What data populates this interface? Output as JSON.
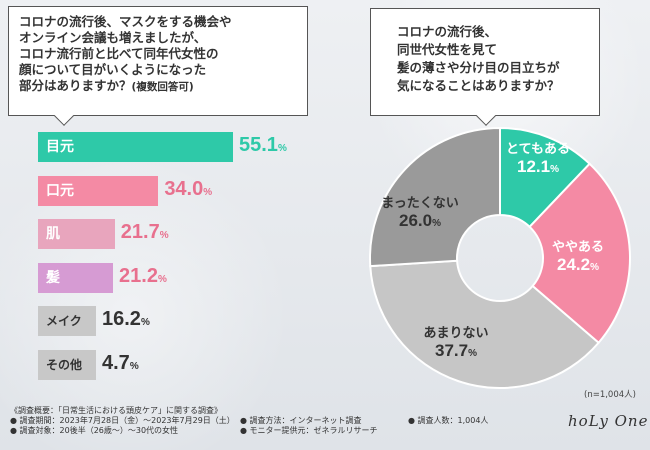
{
  "question_left": {
    "lines": [
      "コロナの流行後、マスクをする機会や",
      "オンライン会議も増えましたが、",
      "コロナ流行前と比べて同年代女性の",
      "顔について目がいくようになった"
    ],
    "last_line": "部分はありますか？",
    "note": "(複数回答可)"
  },
  "question_right": {
    "lines": [
      "コロナの流行後、",
      "同世代女性を見て",
      "髪の薄さや分け目の目立ちが",
      "気になることはありますか？"
    ]
  },
  "chart_data": [
    {
      "type": "bar",
      "orientation": "horizontal",
      "title": "コロナの流行後、マスクをする機会やオンライン会議も増えましたが、コロナ流行前と比べて同年代女性の顔について目がいくようになった部分はありますか？(複数回答可)",
      "categories": [
        "目元",
        "口元",
        "肌",
        "髪",
        "メイク",
        "その他"
      ],
      "values": [
        55.1,
        34.0,
        21.7,
        21.2,
        16.2,
        4.7
      ],
      "value_labels": [
        "55.1",
        "34.0",
        "21.7",
        "21.2",
        "16.2",
        "4.7"
      ],
      "unit": "%",
      "colors": [
        "#2ec9a8",
        "#f48aa4",
        "#e8a5bd",
        "#d69bd3",
        "#c8c8c8",
        "#c8c8c8"
      ],
      "label_colors": [
        "#2ec9a8",
        "#e8708e",
        "#e8708e",
        "#e8708e",
        "#333333",
        "#333333"
      ]
    },
    {
      "type": "pie",
      "style": "donut",
      "title": "コロナの流行後、同世代女性を見て髪の薄さや分け目の目立ちが気になることはありますか？",
      "categories": [
        "とてもある",
        "ややある",
        "あまりない",
        "まったくない"
      ],
      "values": [
        12.1,
        24.2,
        37.7,
        26.0
      ],
      "value_labels": [
        "12.1",
        "24.2",
        "37.7",
        "26.0"
      ],
      "unit": "%",
      "colors": [
        "#2ec9a8",
        "#f48aa4",
        "#c6c6c6",
        "#9a9a9a"
      ],
      "label_colors": [
        "#ffffff",
        "#ffffff",
        "#333333",
        "#333333"
      ],
      "n_note": "(n=1,004人)"
    }
  ],
  "footer": {
    "col1": [
      "《調査概要：「日常生活における頭皮ケア」に関する調査》",
      "● 調査期間：2023年7月28日（金）〜2023年7月29日（土）",
      "● 調査対象：20後半（26歳〜）〜30代の女性"
    ],
    "col2": [
      "● 調査方法：インターネット調査",
      "● モニター提供元：ゼネラルリサーチ"
    ],
    "col3": [
      "● 調査人数：1,004人"
    ]
  },
  "logo_text": "hoLy One"
}
